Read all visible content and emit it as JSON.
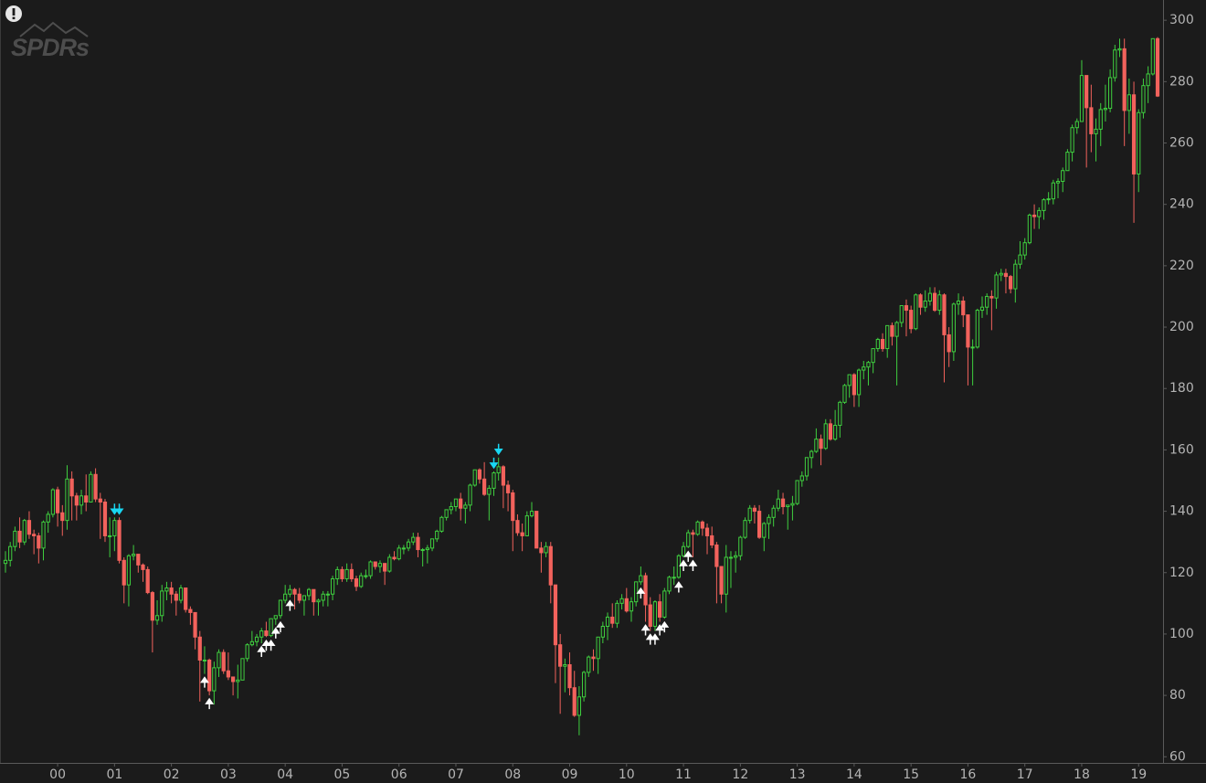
{
  "logo": "SPDRs",
  "chart_data": {
    "type": "candlestick",
    "categories": [
      null,
      null,
      null,
      null,
      null,
      null,
      null,
      null,
      null,
      null,
      null,
      "00",
      null,
      null,
      null,
      null,
      null,
      null,
      null,
      null,
      null,
      null,
      null,
      "01",
      null,
      null,
      null,
      null,
      null,
      null,
      null,
      null,
      null,
      null,
      null,
      "02",
      null,
      null,
      null,
      null,
      null,
      null,
      null,
      null,
      null,
      null,
      null,
      "03",
      null,
      null,
      null,
      null,
      null,
      null,
      null,
      null,
      null,
      null,
      null,
      "04",
      null,
      null,
      null,
      null,
      null,
      null,
      null,
      null,
      null,
      null,
      null,
      "05",
      null,
      null,
      null,
      null,
      null,
      null,
      null,
      null,
      null,
      null,
      null,
      "06",
      null,
      null,
      null,
      null,
      null,
      null,
      null,
      null,
      null,
      null,
      null,
      "07",
      null,
      null,
      null,
      null,
      null,
      null,
      null,
      null,
      null,
      null,
      null,
      "08",
      null,
      null,
      null,
      null,
      null,
      null,
      null,
      null,
      null,
      null,
      null,
      "09",
      null,
      null,
      null,
      null,
      null,
      null,
      null,
      null,
      null,
      null,
      null,
      "10",
      null,
      null,
      null,
      null,
      null,
      null,
      null,
      null,
      null,
      null,
      null,
      "11",
      null,
      null,
      null,
      null,
      null,
      null,
      null,
      null,
      null,
      null,
      null,
      "12",
      null,
      null,
      null,
      null,
      null,
      null,
      null,
      null,
      null,
      null,
      null,
      "13",
      null,
      null,
      null,
      null,
      null,
      null,
      null,
      null,
      null,
      null,
      null,
      "14",
      null,
      null,
      null,
      null,
      null,
      null,
      null,
      null,
      null,
      null,
      null,
      "15",
      null,
      null,
      null,
      null,
      null,
      null,
      null,
      null,
      null,
      null,
      null,
      "16",
      null,
      null,
      null,
      null,
      null,
      null,
      null,
      null,
      null,
      null,
      null,
      "17",
      null,
      null,
      null,
      null,
      null,
      null,
      null,
      null,
      null,
      null,
      null,
      "18",
      null,
      null,
      null,
      null,
      null,
      null,
      null,
      null,
      null,
      null,
      null,
      "19",
      null,
      null,
      null,
      null
    ],
    "open": [
      123,
      124,
      128.5,
      133.5,
      130,
      137,
      132.5,
      132,
      128,
      136.5,
      139,
      147,
      139.5,
      137,
      150.5,
      145,
      142,
      145,
      143,
      152,
      144,
      143,
      132,
      132,
      137,
      124,
      116,
      125.5,
      126,
      122.5,
      121,
      113.5,
      104.5,
      106,
      114,
      115,
      113,
      111,
      115,
      108,
      107,
      99,
      91.5,
      91.5,
      81.5,
      89,
      94,
      88,
      86,
      84.5,
      85,
      92,
      96.5,
      97.5,
      99,
      101,
      99.5,
      105,
      106,
      111,
      113,
      114.5,
      113,
      111,
      112.5,
      114.5,
      110.5,
      111,
      113,
      113,
      118,
      121,
      118,
      121,
      118,
      115.5,
      119,
      119,
      123.5,
      122,
      123,
      120.5,
      125,
      124.5,
      128,
      128,
      130,
      131.5,
      127.5,
      127.5,
      128,
      131,
      133.5,
      138,
      140.5,
      141.5,
      144,
      141,
      142,
      148.5,
      153.5,
      150.5,
      145.5,
      147.5,
      152.5,
      154.5,
      148.5,
      146,
      137,
      133,
      132,
      138.5,
      140,
      128,
      126.5,
      128.5,
      116,
      96.5,
      89.5,
      90,
      82.5,
      73.5,
      79.5,
      87.5,
      92.5,
      92,
      99,
      102.5,
      105.5,
      103.5,
      110,
      111.5,
      107.5,
      110.5,
      117,
      119,
      109.5,
      102.5,
      110.5,
      105.5,
      114,
      118.5,
      118.5,
      125.5,
      128.5,
      133,
      132.5,
      136.5,
      134.5,
      132,
      129,
      122,
      113,
      125,
      125,
      125.5,
      131.5,
      137,
      141,
      140,
      131.5,
      136,
      138,
      141,
      144,
      141.5,
      142,
      142.5,
      150,
      151.5,
      157.5,
      159.5,
      163.5,
      160.5,
      168.5,
      163.5,
      168,
      175.5,
      181,
      184.5,
      178,
      186,
      187,
      188.5,
      193,
      196,
      193,
      200.5,
      197,
      201.5,
      207,
      205.5,
      199.5,
      210.5,
      206.5,
      208.5,
      211,
      205.5,
      210.5,
      197.5,
      192,
      207.5,
      208.5,
      204,
      193.5,
      193.5,
      205.5,
      206.5,
      210,
      209.5,
      217,
      217.5,
      216.5,
      212.5,
      220.5,
      223.5,
      227.5,
      236.5,
      236,
      238,
      241.5,
      241.8,
      247,
      247.5,
      251,
      257,
      265,
      267,
      282,
      271.5,
      263,
      264.5,
      270.9,
      271.3,
      281.3,
      290.3,
      290.7,
      270.6,
      275.7,
      249.9,
      269.9,
      278.7,
      282.5,
      294
    ],
    "high": [
      127,
      130,
      135,
      138,
      137.5,
      140,
      134,
      133,
      137,
      140,
      147.5,
      148,
      142,
      155,
      153,
      146,
      147,
      152,
      153,
      154,
      146,
      144,
      138,
      138,
      138,
      125,
      126,
      129,
      126,
      123,
      122,
      114,
      111,
      116,
      117,
      117,
      114,
      116,
      115,
      109,
      107,
      101,
      96,
      92,
      91,
      95,
      95,
      94,
      86,
      90,
      92,
      97,
      101,
      100,
      102,
      104,
      105,
      106,
      111,
      116,
      116,
      115,
      115,
      112.5,
      115,
      114.5,
      111.5,
      114,
      114,
      119,
      122,
      122,
      123,
      123,
      119,
      120,
      121,
      124,
      123.5,
      124,
      123,
      126,
      127,
      129,
      129,
      131,
      133,
      133,
      128,
      129,
      131,
      134,
      138.5,
      140.5,
      143,
      144,
      146,
      143,
      149,
      153.5,
      154,
      156,
      148.5,
      153,
      157.5,
      155,
      150,
      147,
      139,
      136,
      140,
      143,
      140,
      130,
      130,
      130,
      116,
      100,
      92,
      94,
      88,
      83,
      88,
      93,
      95,
      99,
      104,
      107,
      110,
      111,
      113,
      115,
      112,
      117,
      122,
      120,
      112,
      111,
      113,
      115,
      119,
      122,
      126,
      130,
      134,
      134,
      137,
      137,
      136,
      135,
      130,
      122,
      129,
      127,
      127,
      132,
      138,
      142,
      142,
      142,
      136.5,
      139,
      142,
      147,
      146,
      142,
      145,
      150,
      153,
      157.5,
      160,
      167,
      165,
      170,
      170,
      173,
      176,
      181.5,
      184.5,
      185,
      186.5,
      189,
      189,
      193,
      196.5,
      198,
      200.5,
      201.5,
      202,
      207,
      209,
      207,
      211,
      211,
      212,
      213,
      213,
      212,
      211,
      200,
      208,
      211,
      210,
      204,
      196,
      206,
      210,
      211,
      212,
      218,
      219,
      219,
      217,
      222,
      228,
      229,
      237,
      240,
      239,
      242,
      244,
      248,
      248.5,
      252,
      258,
      266,
      268,
      287,
      282,
      279,
      268,
      273,
      279,
      284,
      292,
      294,
      294,
      281,
      280,
      271,
      281,
      285,
      294,
      294.5
    ],
    "low": [
      120,
      122,
      127,
      128,
      129,
      131,
      126,
      123,
      124,
      133,
      138,
      135,
      132,
      134,
      137,
      137,
      139,
      140,
      143,
      143,
      131,
      130,
      125,
      127,
      123,
      110,
      109,
      124,
      120,
      117,
      113,
      94,
      103,
      104,
      111,
      110,
      106,
      110,
      107,
      103,
      95,
      78,
      87,
      80,
      77,
      86,
      87,
      85,
      80,
      79,
      85,
      91,
      96,
      96,
      97,
      99,
      99,
      103,
      105,
      110,
      112,
      108,
      110,
      106,
      111,
      106,
      106,
      109,
      109,
      111,
      116,
      117,
      117,
      117,
      114,
      115,
      118,
      118,
      121,
      120,
      116,
      120,
      124,
      124,
      126,
      127,
      129,
      125,
      122,
      123,
      127,
      130,
      133,
      137,
      139,
      140,
      137,
      136,
      140,
      148,
      149,
      145,
      137,
      145,
      150,
      141,
      140,
      127,
      132,
      127,
      132,
      138,
      128,
      120,
      125,
      110,
      84,
      74,
      81,
      80,
      73,
      67,
      78,
      86,
      88,
      87,
      97,
      98,
      102,
      102,
      108,
      107,
      104,
      109,
      116,
      104,
      101,
      101,
      104,
      105,
      113,
      116,
      118,
      125,
      128,
      125,
      132,
      132,
      126,
      128,
      110,
      110,
      107,
      115,
      120,
      124,
      131,
      136,
      136,
      131,
      127,
      131,
      135,
      140,
      139,
      134,
      137,
      142,
      148,
      150,
      154,
      159,
      155,
      160,
      163,
      163,
      164,
      175,
      177,
      174,
      174,
      183,
      181,
      185,
      192,
      192,
      190,
      194,
      181,
      200,
      197,
      198,
      199,
      204,
      205,
      207,
      205,
      204,
      182,
      187,
      189,
      204,
      200,
      181,
      181,
      193,
      203,
      204,
      199,
      206,
      215,
      211,
      211,
      208,
      219,
      222,
      227,
      232,
      232,
      235,
      240,
      240,
      242,
      244,
      251,
      254,
      263,
      267,
      252,
      257,
      254,
      259,
      267,
      270,
      280,
      288,
      259,
      263,
      234,
      244,
      268,
      273,
      282,
      275
    ],
    "close": [
      124,
      128.5,
      133.5,
      130,
      137,
      132.5,
      132,
      128,
      136.5,
      139,
      147,
      139.5,
      137,
      150.5,
      145,
      142,
      145,
      143,
      152,
      144,
      143,
      132,
      132,
      137,
      124,
      116,
      125.5,
      126,
      122.5,
      121,
      113.5,
      104.5,
      106,
      114,
      115,
      113,
      111,
      115,
      108,
      107,
      99,
      91.5,
      91.5,
      81.5,
      89,
      94,
      88,
      86,
      84.5,
      85,
      92,
      96.5,
      97.5,
      99,
      101,
      99.5,
      105,
      106,
      111,
      113,
      114.5,
      113,
      111,
      112.5,
      114.5,
      110.5,
      111,
      113,
      113,
      118,
      121,
      118,
      121,
      118,
      115.5,
      119,
      119,
      123.5,
      122,
      123,
      120.5,
      125,
      124.5,
      128,
      128,
      130,
      131.5,
      127.5,
      127.5,
      128,
      131,
      133.5,
      138,
      140.5,
      141.5,
      144,
      141,
      142,
      148.5,
      153.5,
      150.5,
      145.5,
      147.5,
      152.5,
      154.5,
      148.5,
      146,
      137,
      133,
      132,
      138.5,
      140,
      128,
      126.5,
      128.5,
      116,
      96.5,
      89.5,
      90,
      82.5,
      73.5,
      79.5,
      87.5,
      92.5,
      92,
      99,
      102.5,
      105.5,
      103.5,
      110,
      111.5,
      107.5,
      110.5,
      117,
      119,
      109.5,
      102.5,
      110.5,
      105.5,
      114,
      118.5,
      118.5,
      125.5,
      128.5,
      133,
      132.5,
      136.5,
      134.5,
      132,
      129,
      122,
      113,
      125,
      125,
      125.5,
      131.5,
      137,
      141,
      140,
      131.5,
      136,
      138,
      141,
      144,
      141.5,
      142,
      142.5,
      150,
      151.5,
      157.5,
      159.5,
      163.5,
      160.5,
      168.5,
      163.5,
      168,
      175.5,
      181,
      184.5,
      178,
      186,
      187,
      188.5,
      193,
      196,
      193,
      200.5,
      197,
      201.5,
      207,
      205.5,
      199.5,
      210.5,
      206.5,
      208.5,
      211,
      205.5,
      210.5,
      197.5,
      192,
      207.5,
      208.5,
      204,
      193.5,
      193.5,
      205.5,
      206.5,
      210,
      209.5,
      217,
      217.5,
      216.5,
      212.5,
      220.5,
      223.5,
      227.5,
      236.5,
      236,
      238,
      241.5,
      241.8,
      247,
      247.5,
      251,
      257,
      265,
      267,
      282,
      271.5,
      263,
      264.5,
      270.9,
      271.3,
      281.3,
      290.3,
      290.7,
      270.6,
      275.7,
      249.9,
      269.9,
      278.7,
      282.5,
      294,
      275.3
    ],
    "up_color": "#3fcf3f",
    "down_color": "#f2625c",
    "markers": [
      {
        "index": 23,
        "direction": "down"
      },
      {
        "index": 24,
        "direction": "down"
      },
      {
        "index": 103,
        "direction": "down"
      },
      {
        "index": 104,
        "direction": "down"
      },
      {
        "index": 42,
        "direction": "up"
      },
      {
        "index": 43,
        "direction": "up"
      },
      {
        "index": 54,
        "direction": "up"
      },
      {
        "index": 55,
        "direction": "up"
      },
      {
        "index": 56,
        "direction": "up"
      },
      {
        "index": 57,
        "direction": "up"
      },
      {
        "index": 58,
        "direction": "up"
      },
      {
        "index": 60,
        "direction": "up"
      },
      {
        "index": 134,
        "direction": "up"
      },
      {
        "index": 135,
        "direction": "up"
      },
      {
        "index": 136,
        "direction": "up"
      },
      {
        "index": 137,
        "direction": "up"
      },
      {
        "index": 138,
        "direction": "up"
      },
      {
        "index": 139,
        "direction": "up"
      },
      {
        "index": 142,
        "direction": "up"
      },
      {
        "index": 143,
        "direction": "up"
      },
      {
        "index": 144,
        "direction": "up"
      },
      {
        "index": 145,
        "direction": "up"
      }
    ],
    "up_marker_color": "#ffffff",
    "down_marker_color": "#19d7f2",
    "ylim": [
      58,
      306
    ],
    "yticks": [
      60,
      80,
      100,
      120,
      140,
      160,
      180,
      200,
      220,
      240,
      260,
      280,
      300
    ],
    "grid": false
  }
}
